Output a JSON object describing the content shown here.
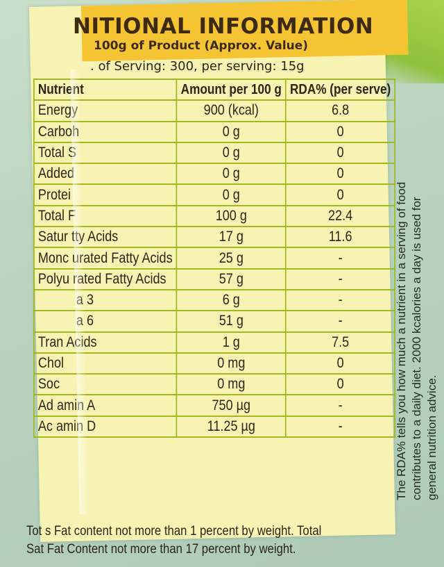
{
  "title": "NITIONAL INFORMATION",
  "subtitle": "100g of Product (Approx. Value)",
  "serving_line": ". of Serving: 300,  per serving: 15g",
  "table": {
    "headers": [
      "Nutrient",
      "Amount per 100 g",
      "RDA% (per serve)"
    ],
    "rows": [
      {
        "nutrient": "Energy",
        "amount": "900 (kcal)",
        "rda": "6.8"
      },
      {
        "nutrient": "Carboh",
        "amount": "0 g",
        "rda": "0"
      },
      {
        "nutrient": "Total S",
        "amount": "0 g",
        "rda": "0"
      },
      {
        "nutrient": "Added",
        "amount": "0 g",
        "rda": "0"
      },
      {
        "nutrient": "Protei",
        "amount": "0 g",
        "rda": "0"
      },
      {
        "nutrient": "Total F",
        "amount": "100 g",
        "rda": "22.4"
      },
      {
        "nutrient": "Satur tty Acids",
        "amount": "17 g",
        "rda": "11.6"
      },
      {
        "nutrient": "Monc urated Fatty Acids",
        "amount": "25 g",
        "rda": "-"
      },
      {
        "nutrient": "Polyu rated Fatty Acids",
        "amount": "57 g",
        "rda": "-"
      },
      {
        "nutrient": "a 3",
        "amount": "6 g",
        "rda": "-"
      },
      {
        "nutrient": "a 6",
        "amount": "51 g",
        "rda": "-"
      },
      {
        "nutrient": "Tran Acids",
        "amount": "1 g",
        "rda": "7.5"
      },
      {
        "nutrient": "Chol",
        "amount": "0 mg",
        "rda": "0"
      },
      {
        "nutrient": "Soc",
        "amount": "0 mg",
        "rda": "0"
      },
      {
        "nutrient": "Ad amin A",
        "amount": "750 µg",
        "rda": "-"
      },
      {
        "nutrient": "Ac amin D",
        "amount": "11.25 µg",
        "rda": "-"
      }
    ]
  },
  "footnote": {
    "line1": "Tot s Fat content not more than 1 percent by weight. Total",
    "line2": "Sat Fat Content not more than 17 percent by weight."
  },
  "side_note": "The RDA% tells you how much a nutrient in a serving of food contributes to a daily diet. 2000 kcalories a day is used for general nutrition advice."
}
